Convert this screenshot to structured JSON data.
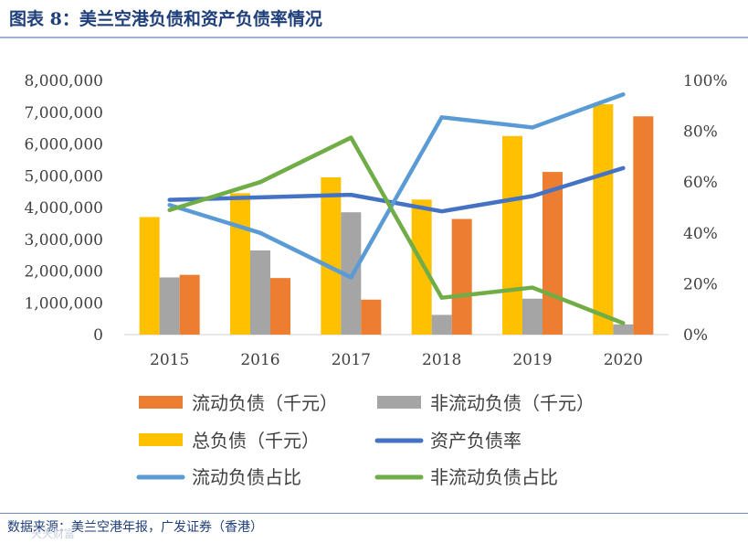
{
  "figure_title": "图表 8：美兰空港负债和资产负债率情况",
  "source_note": "数据来源：美兰空港年报，广发证券（香港）",
  "watermark": "天天财富",
  "colors": {
    "current_liab": "#ED7D31",
    "noncurrent_liab": "#A5A5A5",
    "total_liab": "#FFC000",
    "asset_liab_ratio": "#4472C4",
    "current_share": "#5B9BD5",
    "noncurrent_share": "#70AD47"
  },
  "chart_data": {
    "type": "bar",
    "categories": [
      "2015",
      "2016",
      "2017",
      "2018",
      "2019",
      "2020"
    ],
    "left_axis": {
      "ylim": [
        0,
        8000000
      ],
      "ticks": [
        0,
        1000000,
        2000000,
        3000000,
        4000000,
        5000000,
        6000000,
        7000000,
        8000000
      ],
      "tick_labels": [
        "0",
        "1,000,000",
        "2,000,000",
        "3,000,000",
        "4,000,000",
        "5,000,000",
        "6,000,000",
        "7,000,000",
        "8,000,000"
      ]
    },
    "right_axis": {
      "ylim": [
        0,
        1
      ],
      "ticks": [
        0,
        0.2,
        0.4,
        0.6,
        0.8,
        1.0
      ],
      "tick_labels": [
        "0%",
        "20%",
        "40%",
        "60%",
        "80%",
        "100%"
      ]
    },
    "bar_series": [
      {
        "key": "total_liab",
        "name": "总负债（千元）",
        "values": [
          3700000,
          4450000,
          4950000,
          4250000,
          6250000,
          7250000
        ]
      },
      {
        "key": "noncurrent_liab",
        "name": "非流动负债（千元）",
        "values": [
          1800000,
          2650000,
          3850000,
          620000,
          1130000,
          320000
        ]
      },
      {
        "key": "current_liab",
        "name": "流动负债（千元）",
        "values": [
          1880000,
          1780000,
          1100000,
          3640000,
          5120000,
          6870000
        ]
      }
    ],
    "line_series": [
      {
        "key": "asset_liab_ratio",
        "name": "资产负债率",
        "values": [
          0.53,
          0.54,
          0.55,
          0.485,
          0.545,
          0.655
        ]
      },
      {
        "key": "current_share",
        "name": "流动负债占比",
        "values": [
          0.51,
          0.4,
          0.225,
          0.855,
          0.815,
          0.945
        ]
      },
      {
        "key": "noncurrent_share",
        "name": "非流动负债占比",
        "values": [
          0.49,
          0.6,
          0.775,
          0.145,
          0.185,
          0.045
        ]
      }
    ],
    "legend": [
      {
        "key": "current_liab",
        "label": "流动负债（千元）",
        "kind": "bar"
      },
      {
        "key": "noncurrent_liab",
        "label": "非流动负债（千元）",
        "kind": "bar"
      },
      {
        "key": "total_liab",
        "label": "总负债（千元）",
        "kind": "bar"
      },
      {
        "key": "asset_liab_ratio",
        "label": "资产负债率",
        "kind": "line"
      },
      {
        "key": "current_share",
        "label": "流动负债占比",
        "kind": "line"
      },
      {
        "key": "noncurrent_share",
        "label": "非流动负债占比",
        "kind": "line"
      }
    ],
    "legend_position": "bottom",
    "grid": false
  }
}
